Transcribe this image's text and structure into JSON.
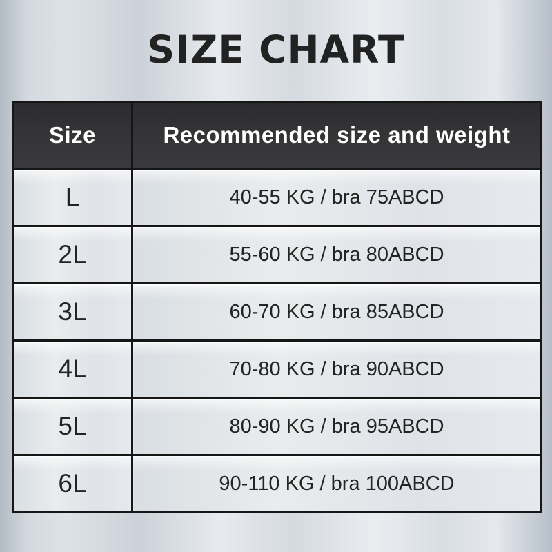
{
  "title": "SIZE CHART",
  "table": {
    "headers": [
      "Size",
      "Recommended size and weight"
    ],
    "rows": [
      {
        "size": "L",
        "recommendation": "40-55 KG / bra 75ABCD"
      },
      {
        "size": "2L",
        "recommendation": "55-60 KG / bra 80ABCD"
      },
      {
        "size": "3L",
        "recommendation": "60-70 KG / bra 85ABCD"
      },
      {
        "size": "4L",
        "recommendation": "70-80 KG / bra 90ABCD"
      },
      {
        "size": "5L",
        "recommendation": "80-90 KG / bra 95ABCD"
      },
      {
        "size": "6L",
        "recommendation": "90-110 KG / bra 100ABCD"
      }
    ]
  },
  "colors": {
    "title-text": "#222222",
    "header-bg": "#333333",
    "header-text": "#ffffff",
    "header-divider": "#7a7a7a",
    "table-border": "#161616",
    "cell-bg": "#e4e8ec",
    "cell-text": "#242424",
    "page-bg-light": "#e7eaee",
    "page-bg-dark": "#b2bac4"
  },
  "chart_data": {
    "type": "table",
    "title": "SIZE CHART",
    "columns": [
      "Size",
      "Recommended size and weight"
    ],
    "rows": [
      [
        "L",
        "40-55 KG / bra 75ABCD"
      ],
      [
        "2L",
        "55-60 KG / bra 80ABCD"
      ],
      [
        "3L",
        "60-70 KG / bra 85ABCD"
      ],
      [
        "4L",
        "70-80 KG / bra 90ABCD"
      ],
      [
        "5L",
        "80-90 KG / bra 95ABCD"
      ],
      [
        "6L",
        "90-110 KG / bra 100ABCD"
      ]
    ]
  }
}
